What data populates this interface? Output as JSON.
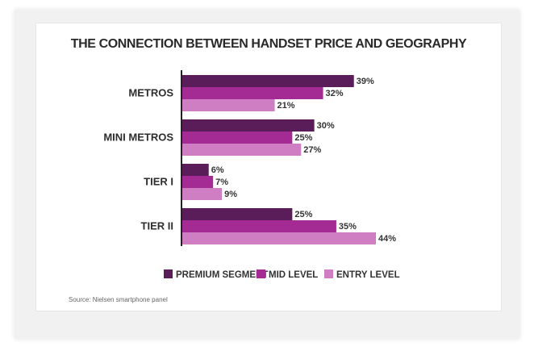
{
  "chart_data": {
    "type": "bar",
    "orientation": "horizontal",
    "title": "THE CONNECTION BETWEEN HANDSET PRICE AND GEOGRAPHY",
    "categories": [
      "METROS",
      "MINI METROS",
      "TIER I",
      "TIER II"
    ],
    "series": [
      {
        "name": "PREMIUM SEGMENT",
        "values": [
          39,
          30,
          6,
          25
        ],
        "labels": [
          "39%",
          "30%",
          "6%",
          "25%"
        ],
        "color": "#5b1d59"
      },
      {
        "name": "MID LEVEL",
        "values": [
          32,
          25,
          7,
          35
        ],
        "labels": [
          "32%",
          "25%",
          "7%",
          "35%"
        ],
        "color": "#a42b94"
      },
      {
        "name": "ENTRY LEVEL",
        "values": [
          21,
          27,
          9,
          44
        ],
        "labels": [
          "21%",
          "27%",
          "9%",
          "44%"
        ],
        "color": "#cf7ec4"
      }
    ],
    "xlim": [
      0,
      44
    ],
    "grid": false,
    "legend": "bottom",
    "source": "Source: Nielsen smartphone panel"
  }
}
